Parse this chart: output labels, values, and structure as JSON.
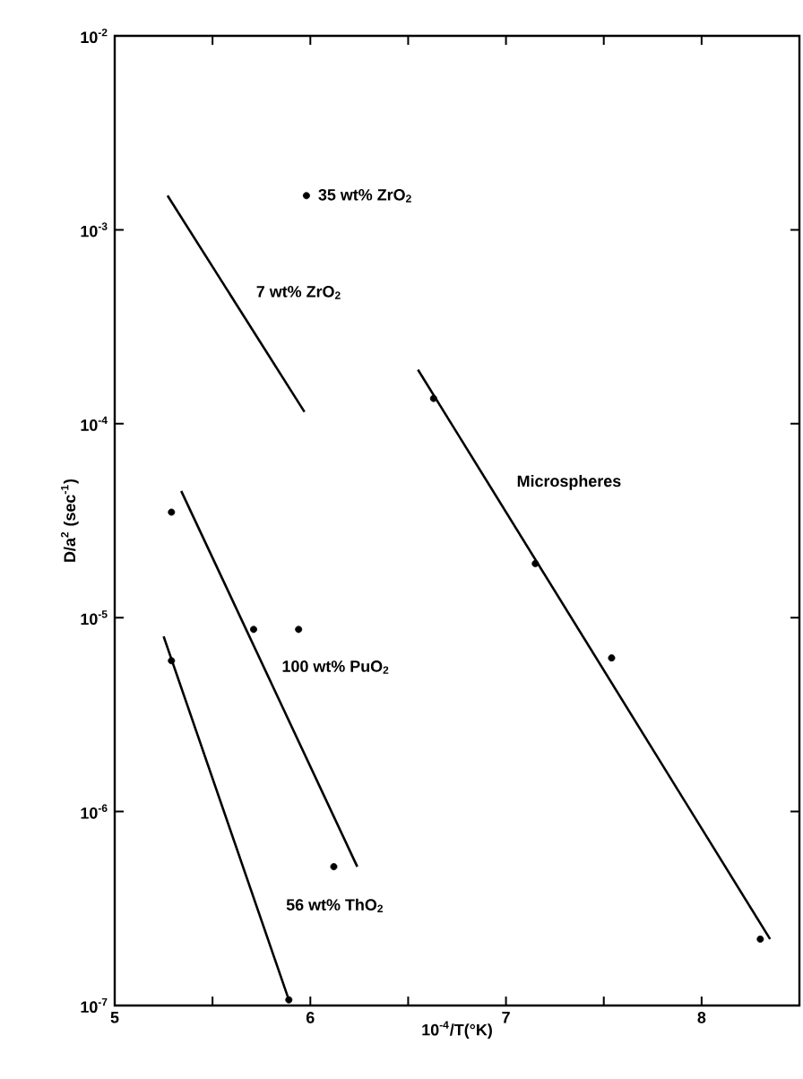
{
  "chart_data": {
    "type": "line",
    "xlabel": "10$^{-4}$/T(°K)",
    "ylabel": "D/a$^{2}$ (sec$^{-1}$)",
    "log": "y",
    "xlim": [
      5,
      8.5
    ],
    "ylim": [
      1e-07,
      0.01
    ],
    "xticks": [
      5,
      {
        "value": 5.5,
        "label": null
      },
      6,
      {
        "value": 6.5,
        "label": null
      },
      7,
      {
        "value": 7.5,
        "label": null
      },
      8
    ],
    "yticks": [
      {
        "value": 1e-07,
        "label": "10$^{-7}$"
      },
      {
        "value": 1e-06,
        "label": "10$^{-6}$"
      },
      {
        "value": 1e-05,
        "label": "10$^{-5}$"
      },
      {
        "value": 0.0001,
        "label": "10$^{-4}$"
      },
      {
        "value": 0.001,
        "label": "10$^{-3}$"
      },
      {
        "value": 0.01,
        "label": "10$^{-2}$"
      }
    ],
    "series": [
      {
        "name": "35 wt% ZrO$_{2}$",
        "type": "scatter",
        "marker": "circle",
        "color": "#000000",
        "x": [
          5.98
        ],
        "values": [
          0.0015
        ]
      },
      {
        "name": "7 wt% ZrO$_{2}$",
        "marker": "none",
        "color": "#000000",
        "x": [
          5.27,
          5.97
        ],
        "values": [
          0.0015,
          0.000115
        ]
      },
      {
        "name": "Microspheres",
        "marker": "none",
        "color": "#000000",
        "x": [
          6.55,
          8.35
        ],
        "values": [
          0.00019,
          2.2e-07
        ]
      },
      {
        "type": "scatter",
        "marker": "circle",
        "color": "#000000",
        "x": [
          6.63,
          7.15,
          7.54,
          8.3
        ],
        "values": [
          0.000135,
          1.9e-05,
          6.2e-06,
          2.2e-07
        ]
      },
      {
        "name": "100 wt% PuO$_{2}$",
        "marker": "none",
        "color": "#000000",
        "x": [
          5.34,
          6.24
        ],
        "values": [
          4.5e-05,
          5.2e-07
        ]
      },
      {
        "type": "scatter",
        "marker": "circle",
        "color": "#000000",
        "x": [
          5.29,
          5.71,
          5.94,
          6.12
        ],
        "values": [
          3.5e-05,
          8.7e-06,
          8.7e-06,
          5.2e-07
        ]
      },
      {
        "name": "56 wt% ThO$_{2}$",
        "marker": "none",
        "color": "#000000",
        "x": [
          5.25,
          5.89
        ],
        "values": [
          8e-06,
          1.07e-07
        ]
      },
      {
        "type": "scatter",
        "marker": "circle",
        "color": "#000000",
        "x": [
          5.29,
          5.89
        ],
        "values": [
          6e-06,
          1.07e-07
        ]
      }
    ]
  }
}
